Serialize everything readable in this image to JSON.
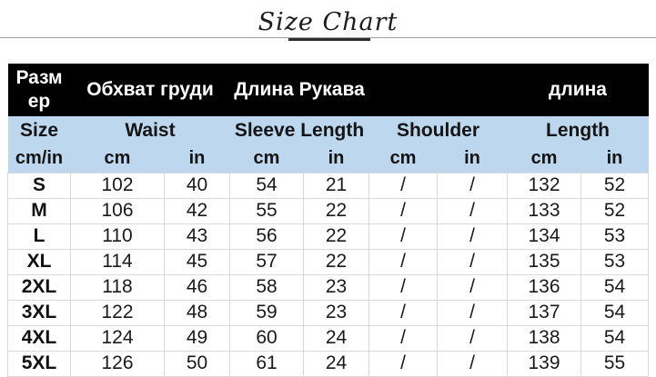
{
  "title": "Size Chart",
  "colors": {
    "header_bg": "#000000",
    "header_text": "#ffffff",
    "subheader_bg": "#bdd7ee",
    "grid_line": "#d9d9d9"
  },
  "chart_data": {
    "type": "table",
    "title": "Size Chart",
    "header_row_ru": [
      "Размер",
      "Обхват груди",
      "Длина Рукава",
      "",
      "длина"
    ],
    "header_row_en": [
      "Size",
      "Waist",
      "Sleeve Length",
      "Shoulder",
      "Length"
    ],
    "unit_row": [
      "cm/in",
      "cm",
      "in",
      "cm",
      "in",
      "cm",
      "in",
      "cm",
      "in"
    ],
    "rows": [
      [
        "S",
        "102",
        "40",
        "54",
        "21",
        "/",
        "/",
        "132",
        "52"
      ],
      [
        "M",
        "106",
        "42",
        "55",
        "22",
        "/",
        "/",
        "133",
        "52"
      ],
      [
        "L",
        "110",
        "43",
        "56",
        "22",
        "/",
        "/",
        "134",
        "53"
      ],
      [
        "XL",
        "114",
        "45",
        "57",
        "22",
        "/",
        "/",
        "135",
        "53"
      ],
      [
        "2XL",
        "118",
        "46",
        "58",
        "23",
        "/",
        "/",
        "136",
        "54"
      ],
      [
        "3XL",
        "122",
        "48",
        "59",
        "23",
        "/",
        "/",
        "137",
        "54"
      ],
      [
        "4XL",
        "124",
        "49",
        "60",
        "24",
        "/",
        "/",
        "138",
        "54"
      ],
      [
        "5XL",
        "126",
        "50",
        "61",
        "24",
        "/",
        "/",
        "139",
        "55"
      ]
    ]
  }
}
